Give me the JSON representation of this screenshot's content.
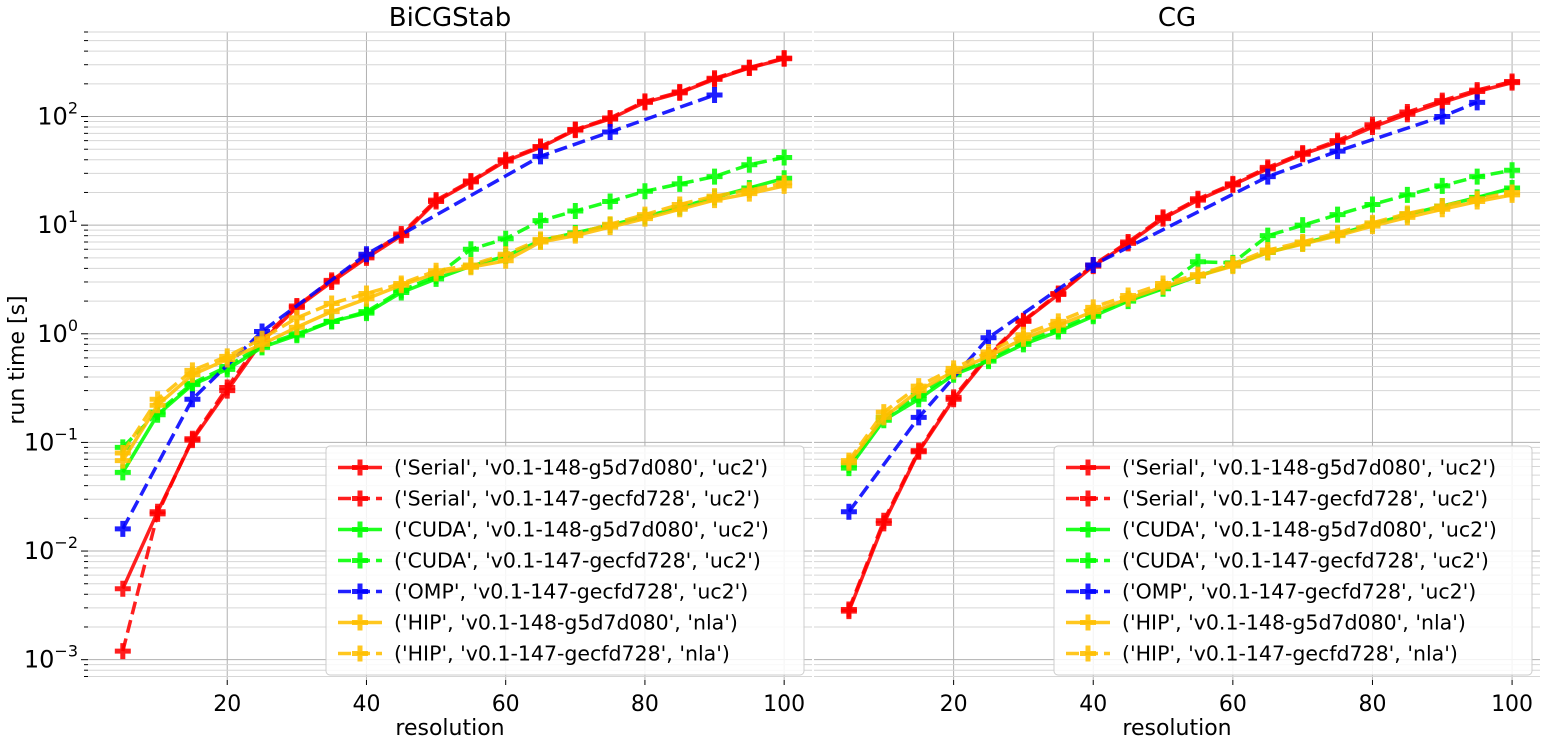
{
  "figure": {
    "ylabel": "run time [s]"
  },
  "chart_data": [
    {
      "type": "line",
      "title": "BiCGStab",
      "xlabel": "resolution",
      "ylabel": "run time [s]",
      "yscale": "log",
      "xlim": [
        0,
        104
      ],
      "ylim": [
        0.00065,
        600
      ],
      "xticks": [
        20,
        40,
        60,
        80,
        100
      ],
      "yticks": [
        0.001,
        0.01,
        0.1,
        1,
        10,
        100
      ],
      "ytick_labels": [
        {
          "base": "10",
          "exp": "−3"
        },
        {
          "base": "10",
          "exp": "−2"
        },
        {
          "base": "10",
          "exp": "−1"
        },
        {
          "base": "10",
          "exp": "0"
        },
        {
          "base": "10",
          "exp": "1"
        },
        {
          "base": "10",
          "exp": "2"
        }
      ],
      "grid": true,
      "legend_position": "bottom-right",
      "series": [
        {
          "name": "('Serial', 'v0.1-148-g5d7d080', 'uc2')",
          "color": "#ff0000",
          "dash": "solid",
          "x": [
            5,
            10,
            15,
            20,
            25,
            30,
            35,
            40,
            45,
            50,
            55,
            60,
            65,
            70,
            75,
            80,
            85,
            90,
            95,
            100
          ],
          "y": [
            0.0045,
            0.023,
            0.105,
            0.3,
            0.85,
            1.75,
            3.0,
            5.0,
            8.0,
            16.5,
            25,
            39,
            52,
            75,
            95,
            135,
            165,
            220,
            280,
            340
          ]
        },
        {
          "name": "('Serial', 'v0.1-147-gecfd728', 'uc2')",
          "color": "#ff0000",
          "dash": "dashed",
          "x": [
            5,
            10,
            15,
            20,
            25,
            30,
            35,
            40,
            45,
            50,
            55,
            60,
            65,
            70,
            75,
            80,
            85,
            90,
            95,
            100
          ],
          "y": [
            0.0012,
            0.022,
            0.108,
            0.32,
            0.9,
            1.8,
            3.1,
            5.2,
            8.3,
            17,
            25.5,
            40,
            53,
            76,
            97,
            138,
            168,
            225,
            282,
            345
          ]
        },
        {
          "name": "('CUDA', 'v0.1-148-g5d7d080', 'uc2')",
          "color": "#00ff00",
          "dash": "solid",
          "x": [
            5,
            10,
            15,
            20,
            25,
            30,
            35,
            40,
            45,
            50,
            55,
            60,
            65,
            70,
            75,
            80,
            85,
            90,
            95,
            100
          ],
          "y": [
            0.053,
            0.18,
            0.34,
            0.47,
            0.75,
            0.97,
            1.3,
            1.55,
            2.4,
            3.2,
            4.2,
            5.2,
            7.2,
            8.5,
            10,
            12,
            14.5,
            18,
            22,
            27
          ]
        },
        {
          "name": "('CUDA', 'v0.1-147-gecfd728', 'uc2')",
          "color": "#00ff00",
          "dash": "dashed",
          "x": [
            5,
            10,
            15,
            20,
            25,
            30,
            35,
            40,
            45,
            50,
            55,
            60,
            65,
            70,
            75,
            80,
            85,
            90,
            95,
            100
          ],
          "y": [
            0.09,
            0.19,
            0.35,
            0.5,
            0.78,
            1.0,
            1.3,
            1.6,
            2.5,
            3.4,
            6.0,
            7.5,
            11,
            13.5,
            16.5,
            20.5,
            24,
            28,
            36,
            42
          ]
        },
        {
          "name": "('OMP', 'v0.1-147-gecfd728', 'uc2')",
          "color": "#0000ff",
          "dash": "dashed",
          "x": [
            5,
            15,
            25,
            40,
            65,
            75,
            90
          ],
          "y": [
            0.016,
            0.25,
            1.05,
            5.4,
            43,
            72,
            158
          ]
        },
        {
          "name": "('HIP', 'v0.1-148-g5d7d080', 'nla')",
          "color": "#ffbf00",
          "dash": "solid",
          "x": [
            5,
            10,
            15,
            20,
            25,
            30,
            35,
            40,
            45,
            50,
            55,
            60,
            65,
            70,
            75,
            80,
            85,
            90,
            95,
            100
          ],
          "y": [
            0.068,
            0.22,
            0.42,
            0.58,
            0.8,
            1.15,
            1.6,
            2.1,
            2.8,
            3.6,
            4.1,
            4.7,
            7.0,
            8.0,
            9.6,
            11.5,
            14,
            17,
            19.5,
            23
          ]
        },
        {
          "name": "('HIP', 'v0.1-147-gecfd728', 'nla')",
          "color": "#ffbf00",
          "dash": "dashed",
          "x": [
            5,
            10,
            15,
            20,
            25,
            30,
            35,
            40,
            45,
            50,
            55,
            60,
            65,
            70,
            75,
            80,
            85,
            90,
            95,
            100
          ],
          "y": [
            0.08,
            0.25,
            0.46,
            0.62,
            0.9,
            1.4,
            1.9,
            2.35,
            2.9,
            3.8,
            4.3,
            5.4,
            7.4,
            8.3,
            10.2,
            12.5,
            15.5,
            18.5,
            21,
            24.5
          ]
        }
      ]
    },
    {
      "type": "line",
      "title": "CG",
      "xlabel": "resolution",
      "ylabel": "",
      "yscale": "log",
      "xlim": [
        0,
        104
      ],
      "ylim": [
        0.00065,
        600
      ],
      "xticks": [
        20,
        40,
        60,
        80,
        100
      ],
      "grid": true,
      "legend_position": "bottom-right",
      "series": [
        {
          "name": "('Serial', 'v0.1-148-g5d7d080', 'uc2')",
          "color": "#ff0000",
          "dash": "solid",
          "x": [
            5,
            10,
            15,
            20,
            25,
            30,
            35,
            40,
            45,
            50,
            55,
            60,
            65,
            70,
            75,
            80,
            85,
            90,
            95,
            100
          ],
          "y": [
            0.0028,
            0.018,
            0.082,
            0.25,
            0.62,
            1.3,
            2.3,
            4.2,
            6.8,
            11.5,
            17,
            23.5,
            33,
            45,
            58,
            80,
            105,
            135,
            170,
            205
          ]
        },
        {
          "name": "('Serial', 'v0.1-147-gecfd728', 'uc2')",
          "color": "#ff0000",
          "dash": "dashed",
          "x": [
            5,
            10,
            15,
            20,
            25,
            30,
            35,
            40,
            45,
            50,
            55,
            60,
            65,
            70,
            75,
            80,
            85,
            90,
            95,
            100
          ],
          "y": [
            0.0029,
            0.019,
            0.084,
            0.26,
            0.64,
            1.32,
            2.35,
            4.3,
            7.0,
            11.8,
            17.5,
            24,
            34,
            46,
            60,
            84,
            110,
            140,
            175,
            210
          ]
        },
        {
          "name": "('CUDA', 'v0.1-148-g5d7d080', 'uc2')",
          "color": "#00ff00",
          "dash": "solid",
          "x": [
            5,
            10,
            15,
            20,
            25,
            30,
            35,
            40,
            45,
            50,
            55,
            60,
            65,
            70,
            75,
            80,
            85,
            90,
            95,
            100
          ],
          "y": [
            0.058,
            0.16,
            0.25,
            0.42,
            0.56,
            0.8,
            1.05,
            1.45,
            2.0,
            2.6,
            3.4,
            4.3,
            5.6,
            6.8,
            8.2,
            10.2,
            12.5,
            15,
            18,
            22
          ]
        },
        {
          "name": "('CUDA', 'v0.1-147-gecfd728', 'uc2')",
          "color": "#00ff00",
          "dash": "dashed",
          "x": [
            5,
            10,
            15,
            20,
            25,
            30,
            35,
            40,
            45,
            50,
            55,
            60,
            65,
            70,
            75,
            80,
            85,
            90,
            95,
            100
          ],
          "y": [
            0.062,
            0.17,
            0.27,
            0.44,
            0.58,
            0.85,
            1.1,
            1.5,
            2.1,
            2.7,
            4.6,
            4.5,
            8.0,
            10,
            12.5,
            15.5,
            19,
            23,
            28,
            32
          ]
        },
        {
          "name": "('OMP', 'v0.1-147-gecfd728', 'uc2')",
          "color": "#0000ff",
          "dash": "dashed",
          "x": [
            5,
            15,
            25,
            40,
            65,
            75,
            90,
            95
          ],
          "y": [
            0.023,
            0.17,
            0.92,
            4.3,
            28,
            48,
            100,
            135
          ]
        },
        {
          "name": "('HIP', 'v0.1-148-g5d7d080', 'nla')",
          "color": "#ffbf00",
          "dash": "solid",
          "x": [
            5,
            10,
            15,
            20,
            25,
            30,
            35,
            40,
            45,
            50,
            55,
            60,
            65,
            70,
            75,
            80,
            85,
            90,
            95,
            100
          ],
          "y": [
            0.065,
            0.17,
            0.3,
            0.45,
            0.62,
            0.9,
            1.2,
            1.6,
            2.1,
            2.7,
            3.4,
            4.2,
            5.6,
            6.7,
            8.0,
            9.8,
            11.8,
            14,
            16.5,
            19
          ]
        },
        {
          "name": "('HIP', 'v0.1-147-gecfd728', 'nla')",
          "color": "#ffbf00",
          "dash": "dashed",
          "x": [
            5,
            10,
            15,
            20,
            25,
            30,
            35,
            40,
            45,
            50,
            55,
            60,
            65,
            70,
            75,
            80,
            85,
            90,
            95,
            100
          ],
          "y": [
            0.068,
            0.19,
            0.33,
            0.48,
            0.68,
            0.98,
            1.3,
            1.75,
            2.25,
            2.9,
            3.5,
            4.4,
            5.9,
            7.0,
            8.5,
            10.5,
            12.8,
            15,
            17.5,
            20
          ]
        }
      ]
    }
  ]
}
